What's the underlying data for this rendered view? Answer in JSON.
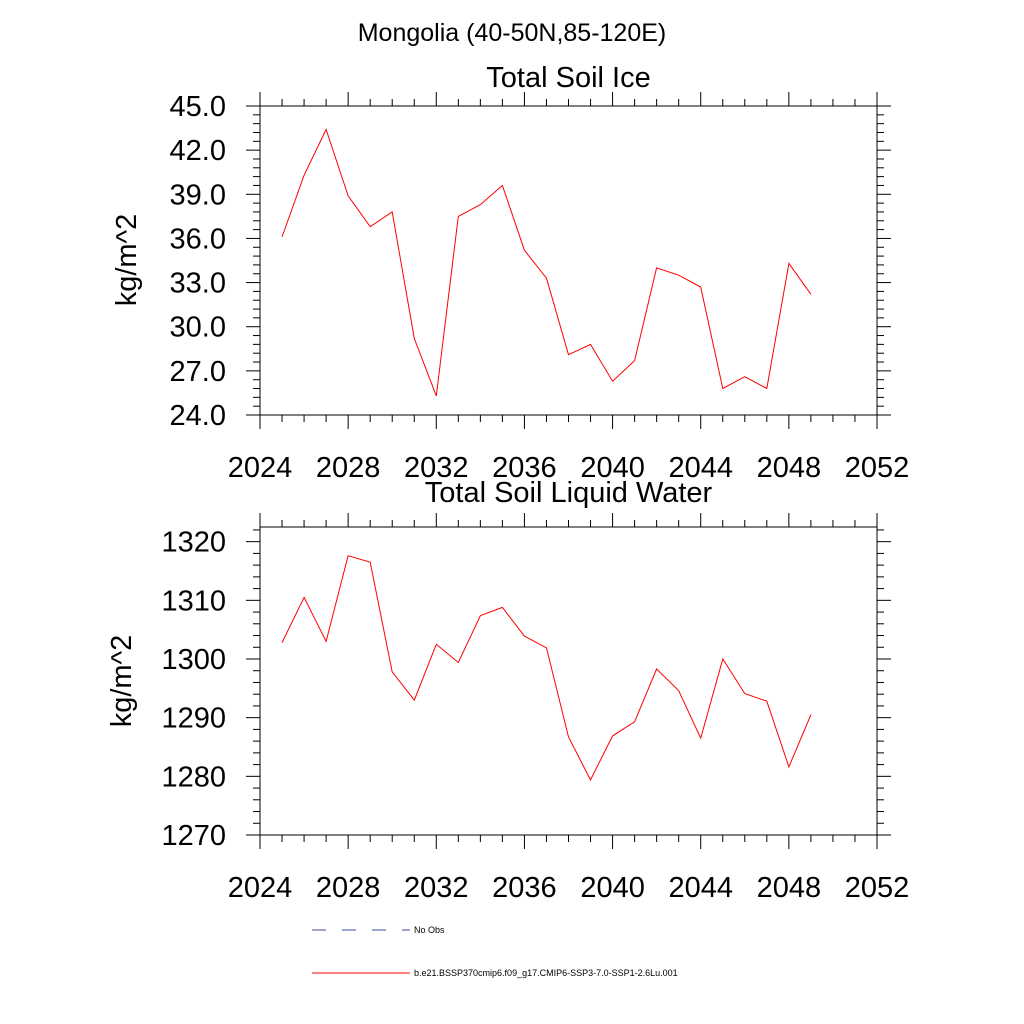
{
  "figure": {
    "title": "Mongolia (40-50N,85-120E)"
  },
  "legend": [
    {
      "label": "No Obs",
      "color": "#3a4aa0",
      "style": "dashed"
    },
    {
      "label": "b.e21.BSSP370cmip6.f09_g17.CMIP6-SSP3-7.0-SSP1-2.6Lu.001",
      "color": "#ff0000",
      "style": "solid"
    }
  ],
  "chart_data": [
    {
      "type": "line",
      "title": "Total Soil Ice",
      "xlabel": "",
      "ylabel": "kg/m^2",
      "xlim": [
        2024,
        2052
      ],
      "ylim": [
        24,
        45
      ],
      "xticks": [
        2024,
        2028,
        2032,
        2036,
        2040,
        2044,
        2048,
        2052
      ],
      "xtick_labels": [
        "2024",
        "2028",
        "2032",
        "2036",
        "2040",
        "2044",
        "2048",
        "2052"
      ],
      "xminor_step": 1,
      "yticks": [
        24,
        27,
        30,
        33,
        36,
        39,
        42,
        45
      ],
      "ytick_labels": [
        "24.0",
        "27.0",
        "30.0",
        "33.0",
        "36.0",
        "39.0",
        "42.0",
        "45.0"
      ],
      "yminor_step": 0.6,
      "grid": false,
      "series": [
        {
          "color": "#ff0000",
          "x": [
            2025,
            2026,
            2027,
            2028,
            2029,
            2030,
            2031,
            2032,
            2033,
            2034,
            2035,
            2036,
            2037,
            2038,
            2039,
            2040,
            2041,
            2042,
            2043,
            2044,
            2045,
            2046,
            2047,
            2048,
            2049
          ],
          "values": [
            36.1,
            40.3,
            43.4,
            38.9,
            36.8,
            37.8,
            29.2,
            25.3,
            37.5,
            38.3,
            39.6,
            35.2,
            33.3,
            28.1,
            28.8,
            26.3,
            27.7,
            34.0,
            33.5,
            32.7,
            25.8,
            26.6,
            25.8,
            34.3,
            32.2
          ]
        }
      ]
    },
    {
      "type": "line",
      "title": "Total Soil Liquid Water",
      "xlabel": "",
      "ylabel": "kg/m^2",
      "xlim": [
        2024,
        2052
      ],
      "ylim": [
        1270,
        1322.5
      ],
      "xticks": [
        2024,
        2028,
        2032,
        2036,
        2040,
        2044,
        2048,
        2052
      ],
      "xtick_labels": [
        "2024",
        "2028",
        "2032",
        "2036",
        "2040",
        "2044",
        "2048",
        "2052"
      ],
      "xminor_step": 1,
      "yticks": [
        1270,
        1280,
        1290,
        1300,
        1310,
        1320
      ],
      "ytick_labels": [
        "1270",
        "1280",
        "1290",
        "1300",
        "1310",
        "1320"
      ],
      "yminor_step": 2,
      "grid": false,
      "series": [
        {
          "color": "#ff0000",
          "x": [
            2025,
            2026,
            2027,
            2028,
            2029,
            2030,
            2031,
            2032,
            2033,
            2034,
            2035,
            2036,
            2037,
            2038,
            2039,
            2040,
            2041,
            2042,
            2043,
            2044,
            2045,
            2046,
            2047,
            2048,
            2049
          ],
          "values": [
            1302.8,
            1310.5,
            1303.0,
            1317.6,
            1316.5,
            1297.8,
            1293.0,
            1302.5,
            1299.4,
            1307.4,
            1308.8,
            1303.9,
            1301.9,
            1286.7,
            1279.4,
            1286.9,
            1289.3,
            1298.3,
            1294.6,
            1286.5,
            1300.0,
            1294.1,
            1292.8,
            1281.6,
            1290.5
          ]
        }
      ]
    }
  ]
}
